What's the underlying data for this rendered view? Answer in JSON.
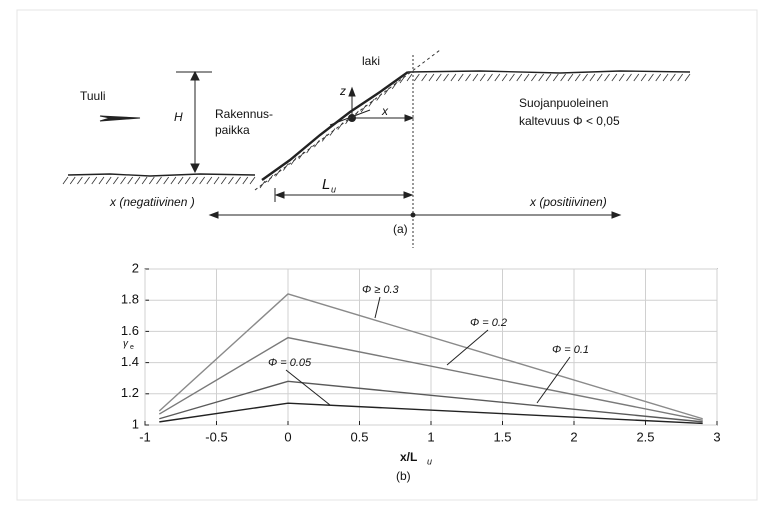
{
  "diagram": {
    "wind": "Tuuli",
    "height": "H",
    "site_line1": "Rakennus-",
    "site_line2": "paikka",
    "crest": "laki",
    "z_axis": "z",
    "x_axis": "x",
    "lee_line1": "Suojanpuoleinen",
    "lee_line2": "kaltevuus  Φ < 0,05",
    "length": "L",
    "length_sub": "u",
    "x_negative": "x (negatiivinen )",
    "x_positive": "x (positiivinen)",
    "caption": "(a)"
  },
  "chart_data": {
    "type": "line",
    "caption": "(b)",
    "x_label": "x/L",
    "x_label_sub": "u",
    "y_label": "γ",
    "y_label_sub": "e",
    "x": [
      -0.9,
      0,
      2.9
    ],
    "series": [
      {
        "name": "Φ ≥ 0.3",
        "color": "#8a8a8a",
        "values": [
          1.09,
          1.84,
          1.04
        ]
      },
      {
        "name": "Φ = 0.2",
        "color": "#7a7a7a",
        "values": [
          1.07,
          1.56,
          1.03
        ]
      },
      {
        "name": "Φ = 0.1",
        "color": "#5a5a5a",
        "values": [
          1.04,
          1.28,
          1.02
        ]
      },
      {
        "name": "Φ = 0.05",
        "color": "#222222",
        "values": [
          1.02,
          1.14,
          1.01
        ]
      }
    ],
    "xlim": [
      -1,
      3
    ],
    "xticks": [
      -1,
      -0.5,
      0,
      0.5,
      1,
      1.5,
      2,
      2.5,
      3
    ],
    "ylim": [
      1,
      2
    ],
    "yticks": [
      1,
      1.2,
      1.4,
      1.6,
      1.8,
      2
    ],
    "grid": true
  }
}
